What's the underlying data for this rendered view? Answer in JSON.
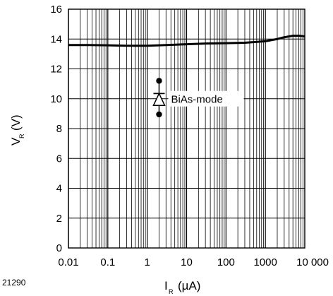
{
  "figure_id": "21290",
  "chart_data": {
    "type": "line",
    "title": "",
    "xlabel": {
      "main": "I",
      "sub": "R",
      "unit": "(µA)"
    },
    "ylabel": {
      "main": "V",
      "sub": "R",
      "unit": "(V)"
    },
    "x_scale": "log",
    "xlim": [
      0.01,
      10000
    ],
    "ylim": [
      0,
      16
    ],
    "x_ticks": [
      0.01,
      0.1,
      1,
      10,
      100,
      1000,
      10000
    ],
    "x_tick_labels": [
      "0.01",
      "0.1",
      "1",
      "10",
      "100",
      "1000",
      "10 000"
    ],
    "y_ticks": [
      0,
      2,
      4,
      6,
      8,
      10,
      12,
      14,
      16
    ],
    "y_tick_labels": [
      "0",
      "2",
      "4",
      "6",
      "8",
      "10",
      "12",
      "14",
      "16"
    ],
    "grid": "on (log minor verticals, major horizontals)",
    "annotation": {
      "text": "BiAs-mode",
      "symbol": "diode-icon",
      "x": 2
    },
    "series": [
      {
        "color": "#000000",
        "x": [
          0.01,
          0.03,
          0.1,
          0.3,
          1,
          3,
          10,
          30,
          100,
          300,
          1000,
          2000,
          3000,
          5000,
          7000,
          10000
        ],
        "y": [
          13.6,
          13.6,
          13.58,
          13.55,
          13.55,
          13.6,
          13.65,
          13.7,
          13.72,
          13.75,
          13.85,
          14.0,
          14.12,
          14.22,
          14.22,
          14.18
        ]
      }
    ]
  }
}
